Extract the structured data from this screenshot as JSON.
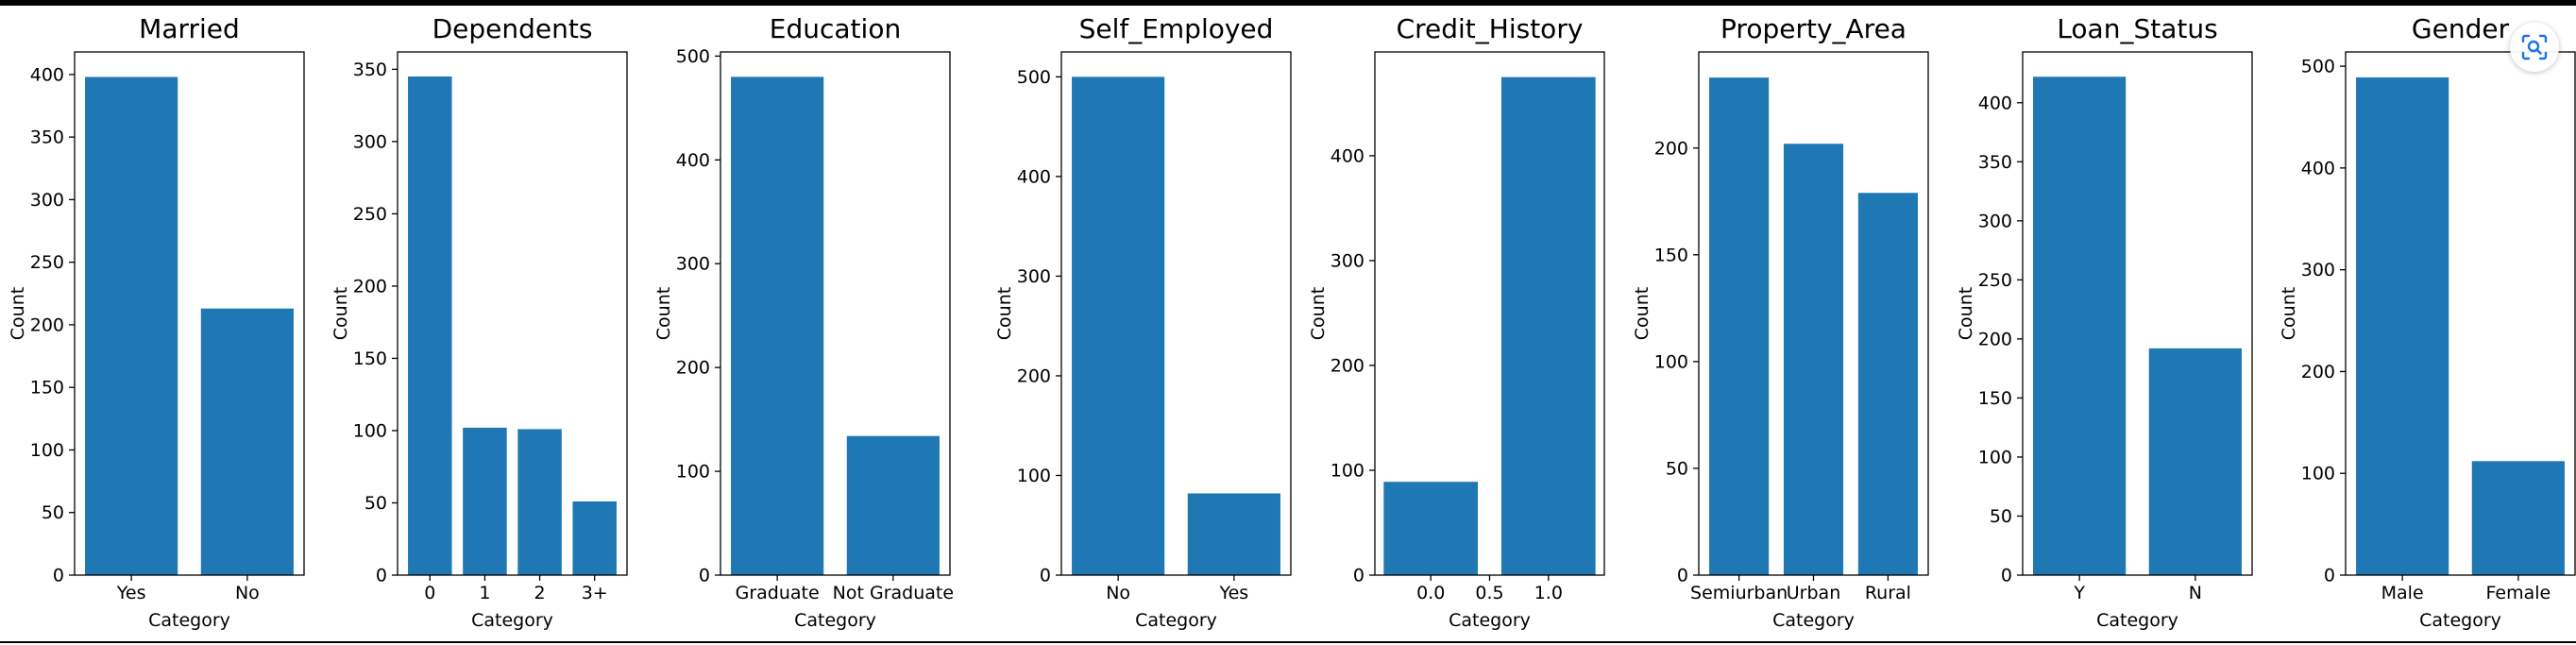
{
  "colors": {
    "bar": "#1f77b4",
    "axis": "#000000",
    "text": "#000000"
  },
  "icons": {
    "lens": "visual-search-icon"
  },
  "chart_data": [
    {
      "type": "bar",
      "title": "Married",
      "xlabel": "Category",
      "ylabel": "Count",
      "categories": [
        "Yes",
        "No"
      ],
      "values": [
        398,
        213
      ],
      "ylim": [
        0,
        418
      ],
      "yticks": [
        "0",
        "50",
        "100",
        "150",
        "200",
        "250",
        "300",
        "350",
        "400"
      ]
    },
    {
      "type": "bar",
      "title": "Dependents",
      "xlabel": "Category",
      "ylabel": "Count",
      "categories": [
        "0",
        "1",
        "2",
        "3+"
      ],
      "values": [
        345,
        102,
        101,
        51
      ],
      "ylim": [
        0,
        362
      ],
      "yticks": [
        "0",
        "50",
        "100",
        "150",
        "200",
        "250",
        "300",
        "350"
      ]
    },
    {
      "type": "bar",
      "title": "Education",
      "xlabel": "Category",
      "ylabel": "Count",
      "categories": [
        "Graduate",
        "Not Graduate"
      ],
      "values": [
        480,
        134
      ],
      "ylim": [
        0,
        504
      ],
      "yticks": [
        "0",
        "100",
        "200",
        "300",
        "400",
        "500"
      ]
    },
    {
      "type": "bar",
      "title": "Self_Employed",
      "xlabel": "Category",
      "ylabel": "Count",
      "categories": [
        "No",
        "Yes"
      ],
      "values": [
        500,
        82
      ],
      "ylim": [
        0,
        525
      ],
      "yticks": [
        "0",
        "100",
        "200",
        "300",
        "400",
        "500"
      ]
    },
    {
      "type": "bar",
      "title": "Credit_History",
      "xlabel": "Category",
      "ylabel": "Count",
      "x": [
        0.0,
        1.0
      ],
      "values": [
        89,
        475
      ],
      "xlim": [
        -0.475,
        1.475
      ],
      "xticks": [
        "0.0",
        "0.5",
        "1.0"
      ],
      "bar_width": 0.8,
      "ylim": [
        0,
        499
      ],
      "yticks": [
        "0",
        "100",
        "200",
        "300",
        "400"
      ]
    },
    {
      "type": "bar",
      "title": "Property_Area",
      "xlabel": "Category",
      "ylabel": "Count",
      "categories": [
        "Semiurban",
        "Urban",
        "Rural"
      ],
      "values": [
        233,
        202,
        179
      ],
      "ylim": [
        0,
        245
      ],
      "yticks": [
        "0",
        "50",
        "100",
        "150",
        "200"
      ]
    },
    {
      "type": "bar",
      "title": "Loan_Status",
      "xlabel": "Category",
      "ylabel": "Count",
      "categories": [
        "Y",
        "N"
      ],
      "values": [
        422,
        192
      ],
      "ylim": [
        0,
        443
      ],
      "yticks": [
        "0",
        "50",
        "100",
        "150",
        "200",
        "250",
        "300",
        "350",
        "400"
      ]
    },
    {
      "type": "bar",
      "title": "Gender",
      "xlabel": "Category",
      "ylabel": "Count",
      "categories": [
        "Male",
        "Female"
      ],
      "values": [
        489,
        112
      ],
      "ylim": [
        0,
        514
      ],
      "yticks": [
        "0",
        "100",
        "200",
        "300",
        "400",
        "500"
      ]
    }
  ]
}
